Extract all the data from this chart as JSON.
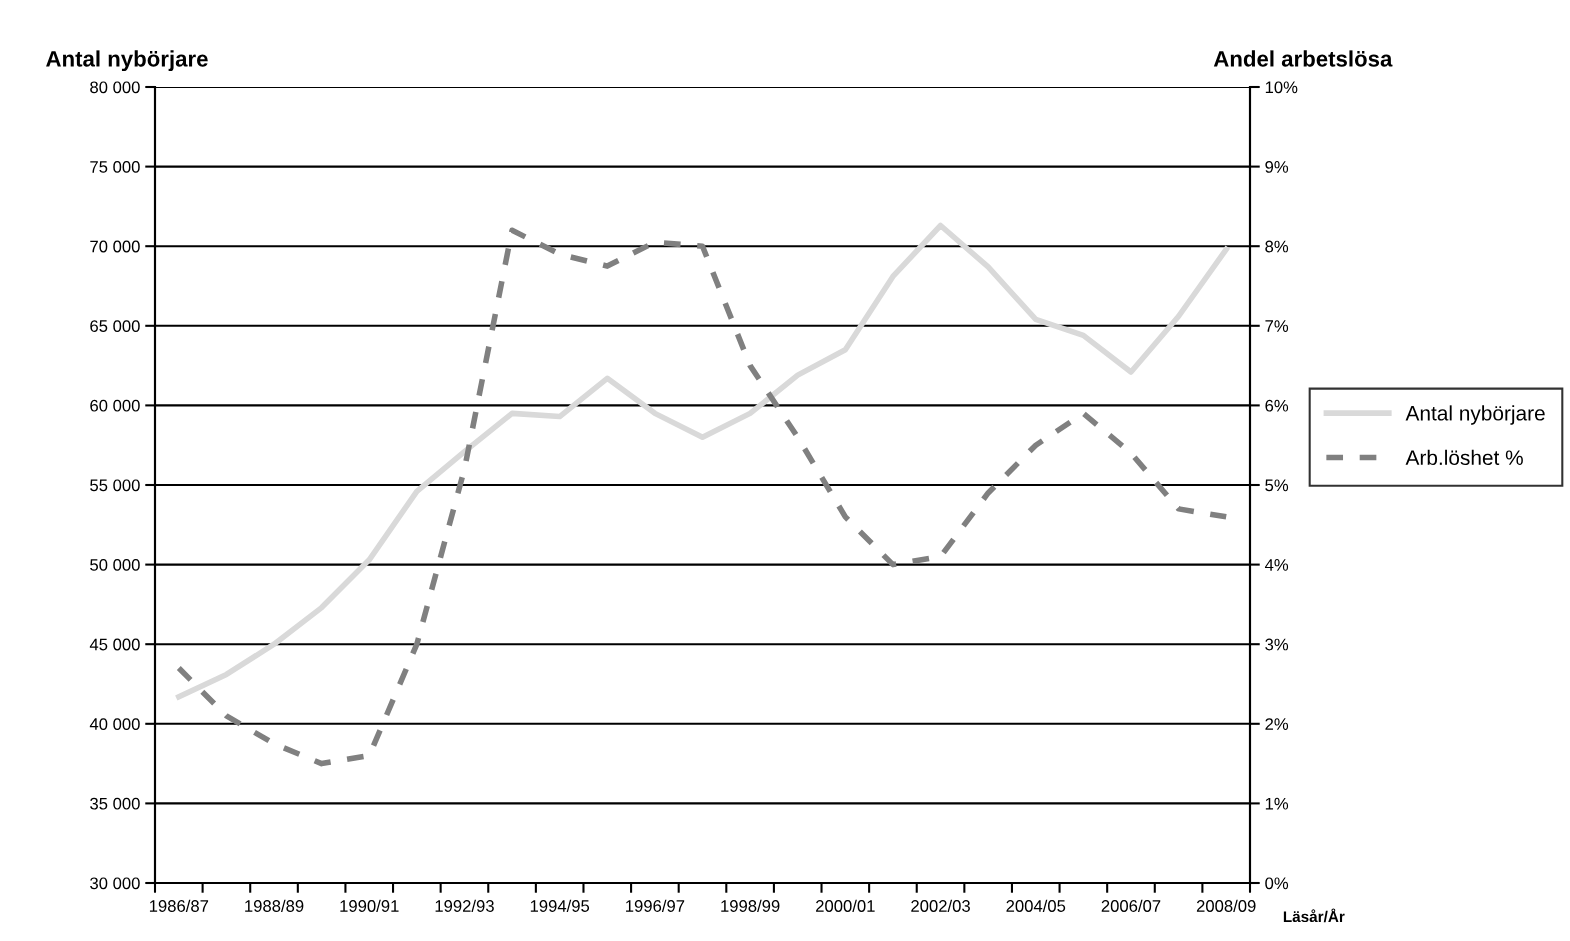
{
  "chart_data": {
    "type": "line",
    "xlabel": "Läsår/År",
    "ylabel": "Antal nybörjare",
    "y2label": "Andel arbetslösa",
    "categories": [
      "1986/87",
      null,
      "1988/89",
      null,
      "1990/91",
      null,
      "1992/93",
      null,
      "1994/95",
      null,
      "1996/97",
      null,
      "1998/99",
      null,
      "2000/01",
      null,
      "2002/03",
      null,
      "2004/05",
      null,
      "2006/07",
      null,
      "2008/09"
    ],
    "series": [
      {
        "name": "Antal nybörjare",
        "color": "#d9d9d9",
        "line_style": "solid",
        "values": [
          41700,
          43100,
          45000,
          47300,
          50300,
          54600,
          57100,
          59500,
          59300,
          61700,
          59500,
          58000,
          59500,
          61900,
          63500,
          68100,
          71300,
          68700,
          65400,
          64400,
          62100,
          65600,
          69800
        ]
      },
      {
        "name": "Arb.löshet %",
        "color": "#808080",
        "line_style": "dashed",
        "axis": "y2",
        "values": [
          2.7,
          2.1,
          1.75,
          1.5,
          1.6,
          3.0,
          5.2,
          8.2,
          7.9,
          7.75,
          8.05,
          8.0,
          6.5,
          5.6,
          4.6,
          4.0,
          4.1,
          4.9,
          5.5,
          5.9,
          5.4,
          4.7,
          4.6
        ]
      }
    ],
    "ylim": [
      30000,
      80000
    ],
    "yticks": [
      {
        "value": 30000,
        "label": "30 000"
      },
      {
        "value": 35000,
        "label": "35 000"
      },
      {
        "value": 40000,
        "label": "40 000"
      },
      {
        "value": 45000,
        "label": "45 000"
      },
      {
        "value": 50000,
        "label": "50 000"
      },
      {
        "value": 55000,
        "label": "55 000"
      },
      {
        "value": 60000,
        "label": "60 000"
      },
      {
        "value": 65000,
        "label": "65 000"
      },
      {
        "value": 70000,
        "label": "70 000"
      },
      {
        "value": 75000,
        "label": "75 000"
      },
      {
        "value": 80000,
        "label": "80 000"
      }
    ],
    "y2lim": [
      0,
      10
    ],
    "y2ticks": [
      {
        "value": 0,
        "label": "0%"
      },
      {
        "value": 1,
        "label": "1%"
      },
      {
        "value": 2,
        "label": "2%"
      },
      {
        "value": 3,
        "label": "3%"
      },
      {
        "value": 4,
        "label": "4%"
      },
      {
        "value": 5,
        "label": "5%"
      },
      {
        "value": 6,
        "label": "6%"
      },
      {
        "value": 7,
        "label": "7%"
      },
      {
        "value": 8,
        "label": "8%"
      },
      {
        "value": 9,
        "label": "9%"
      },
      {
        "value": 10,
        "label": "10%"
      }
    ],
    "grid": "y",
    "legend": "right",
    "marker": "none"
  }
}
